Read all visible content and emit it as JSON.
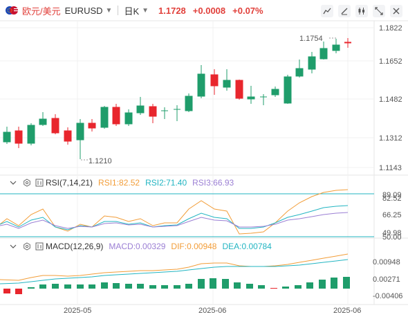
{
  "header": {
    "symbol_cn": "欧元/美元",
    "symbol": "EURUSD",
    "period": "日K",
    "last_price": "1.1728",
    "change": "+0.0008",
    "change_pct": "+0.07%"
  },
  "toolbar": {
    "icons": [
      "indicator-icon",
      "draw-icon",
      "candle-type-icon",
      "fullscreen-icon",
      "close-icon"
    ]
  },
  "main_chart": {
    "y_ticks": [
      "1.1822",
      "1.1652",
      "1.1482",
      "1.1312",
      "1.1143"
    ],
    "high_label": "1.1754",
    "low_label": "1.1210",
    "colors": {
      "up": "#1f9d6b",
      "down": "#e8262d"
    }
  },
  "rsi": {
    "label": "RSI(7,14,21)",
    "rsi1": "RSI1:82.52",
    "rsi2": "RSI2:71.40",
    "rsi3": "RSI3:66.93",
    "ticks": [
      "89.09",
      "82.52",
      "66.25",
      "49.98",
      "50.00"
    ]
  },
  "macd": {
    "label": "MACD(12,26,9)",
    "macd": "MACD:0.00329",
    "dif": "DIF:0.00948",
    "dea": "DEA:0.00784",
    "ticks": [
      "0.00948",
      "0.00271",
      "-0.00406"
    ]
  },
  "x_axis": [
    "2025-05",
    "2025-06",
    "2025-06"
  ]
}
